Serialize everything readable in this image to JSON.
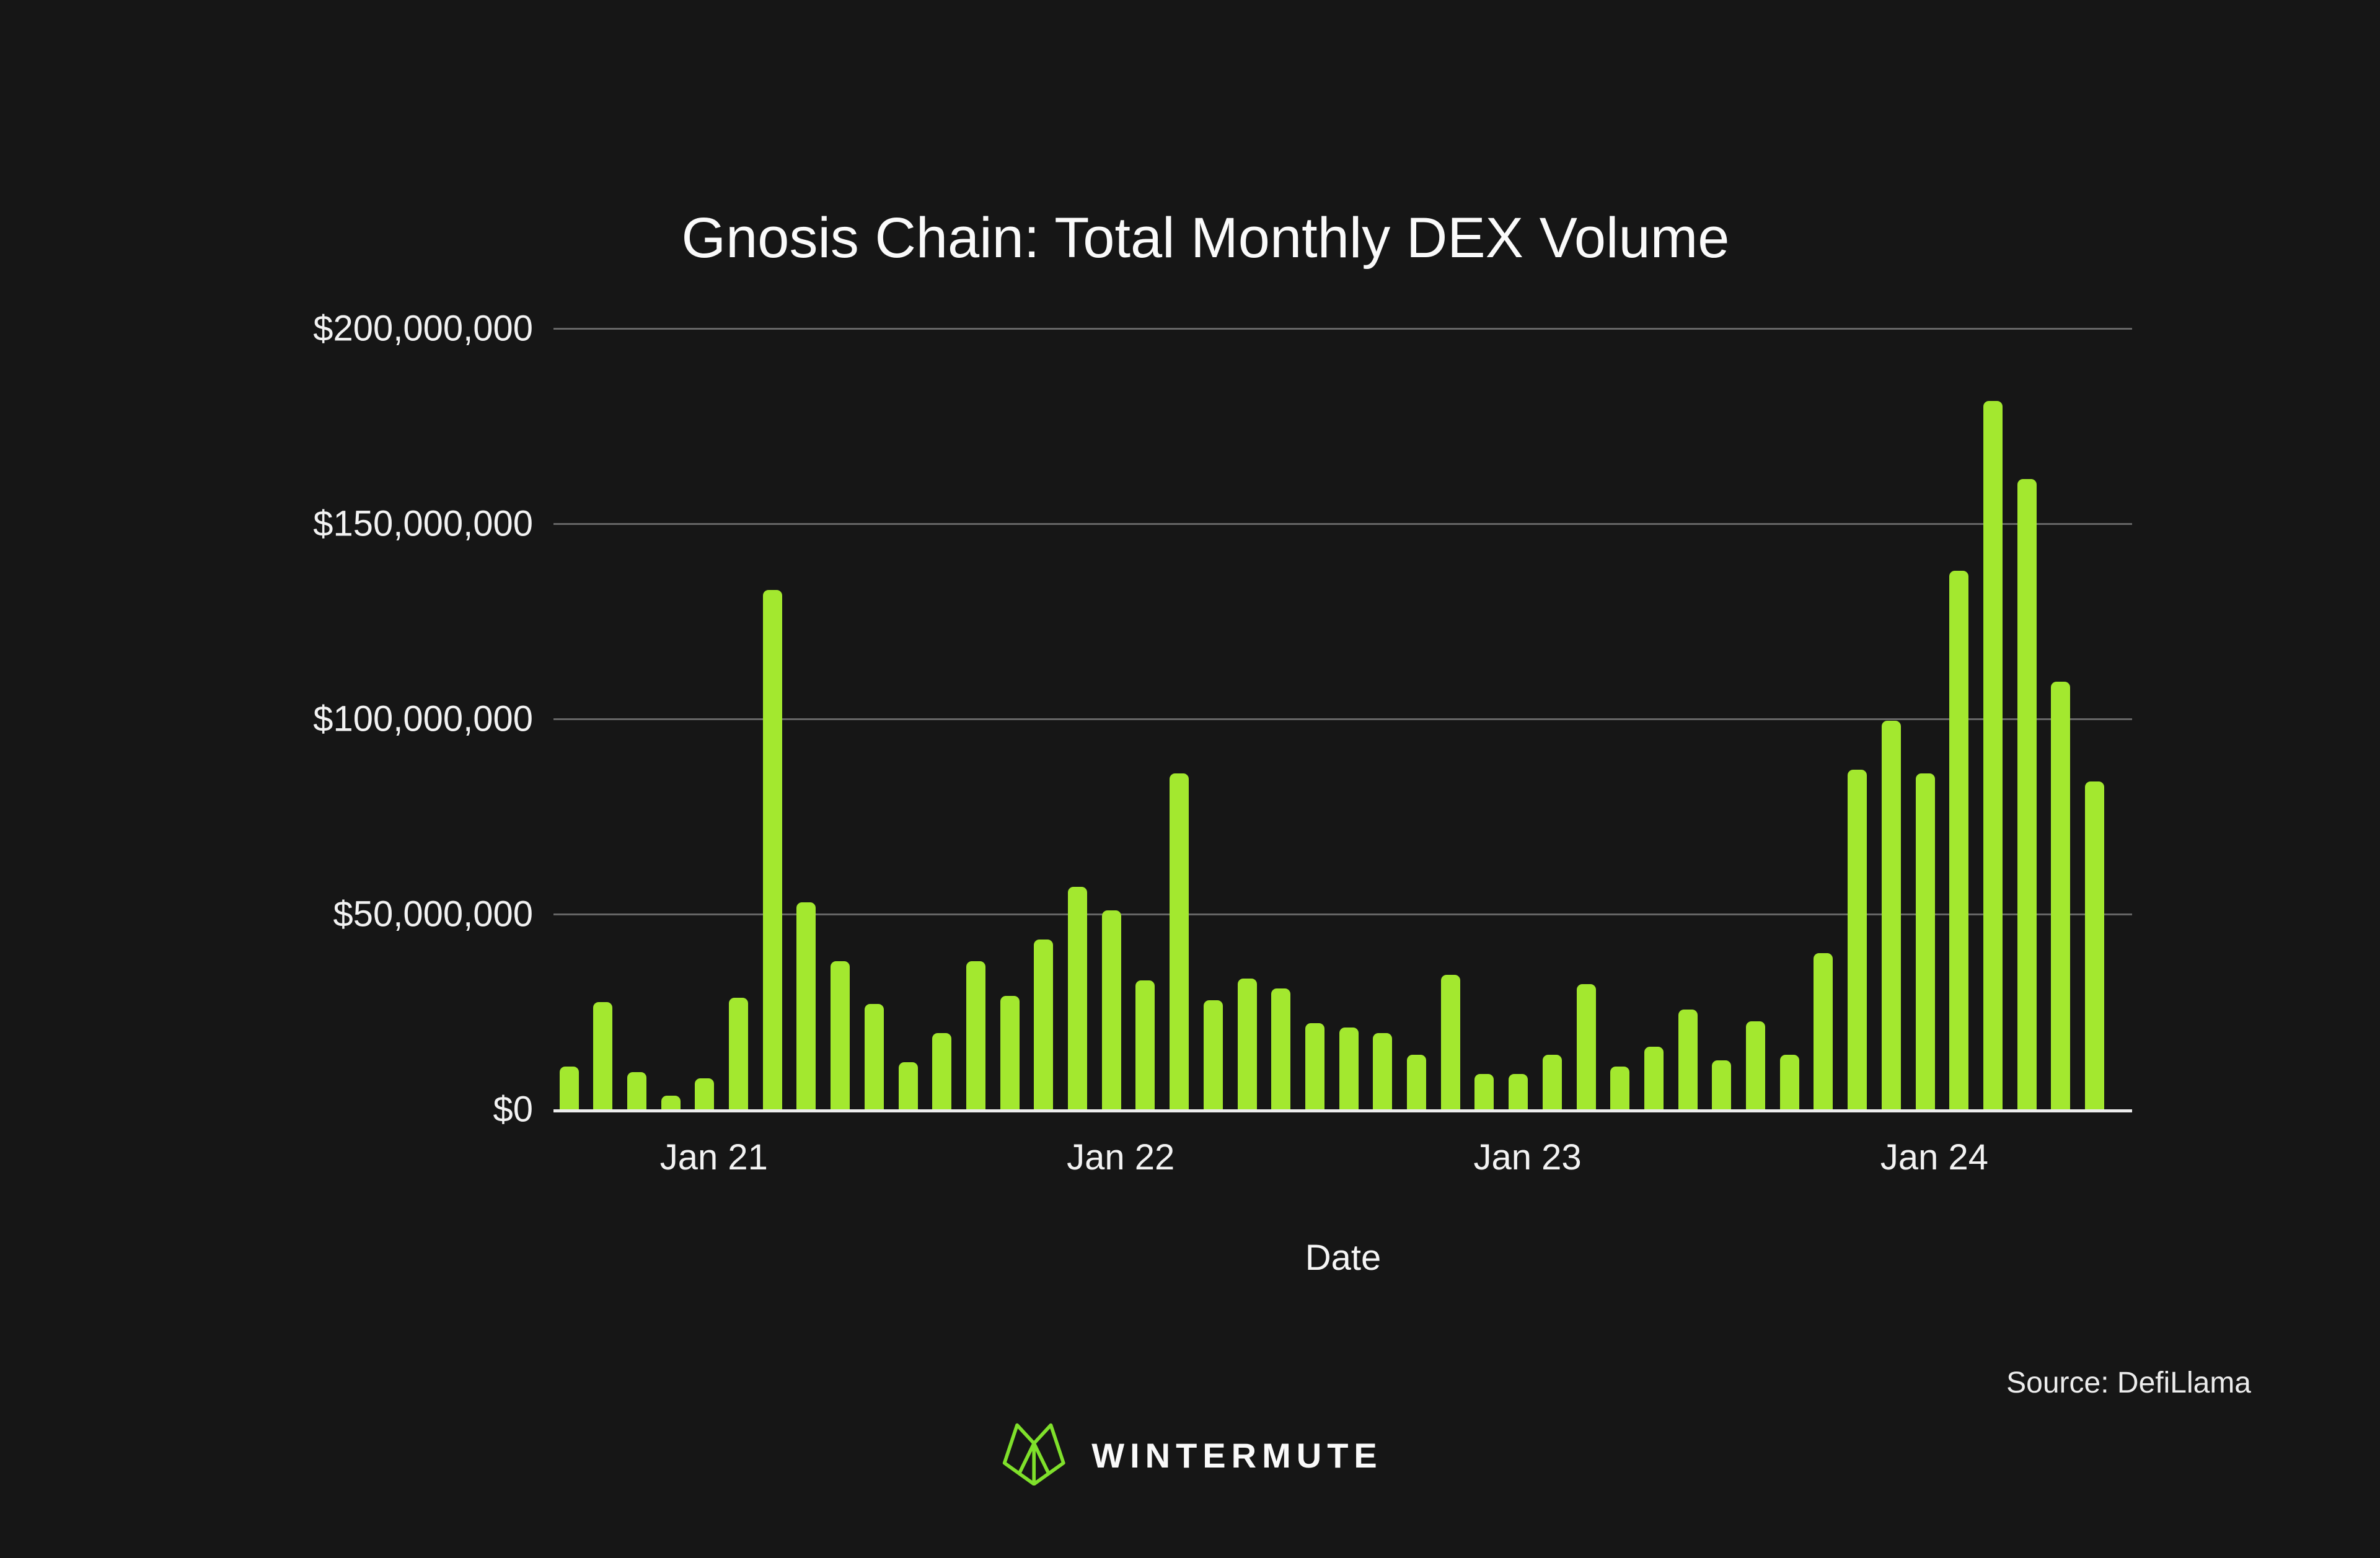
{
  "title": "Gnosis Chain: Total Monthly DEX Volume",
  "x_axis_title": "Date",
  "source_label": "Source: DefiLlama",
  "brand": {
    "wordmark": "WINTERMUTE",
    "icon": "wintermute-fox-icon"
  },
  "colors": {
    "background": "#161616",
    "bar": "#A3E82F",
    "logo_green": "#7FE02B",
    "gridline": "#666666",
    "axis_line": "#ECECEC",
    "text": "#F2F2F2"
  },
  "chart_data": {
    "type": "bar",
    "title": "Gnosis Chain: Total Monthly DEX Volume",
    "xlabel": "Date",
    "ylabel": "",
    "ylim": [
      0,
      200000000
    ],
    "grid": "horizontal",
    "legend": "none",
    "bar_color": "#A3E82F",
    "y_ticks": [
      {
        "value": 0,
        "label": "$0"
      },
      {
        "value": 50000000,
        "label": "$50,000,000"
      },
      {
        "value": 100000000,
        "label": "$100,000,000"
      },
      {
        "value": 150000000,
        "label": "$150,000,000"
      },
      {
        "value": 200000000,
        "label": "$200,000,000"
      }
    ],
    "x_year_ticks": [
      {
        "index": 4,
        "label": "Jan 21"
      },
      {
        "index": 16,
        "label": "Jan 22"
      },
      {
        "index": 28,
        "label": "Jan 23"
      },
      {
        "index": 40,
        "label": "Jan 24"
      }
    ],
    "categories": [
      "Sep 2020",
      "Oct 2020",
      "Nov 2020",
      "Dec 2020",
      "Jan 2021",
      "Feb 2021",
      "Mar 2021",
      "Apr 2021",
      "May 2021",
      "Jun 2021",
      "Jul 2021",
      "Aug 2021",
      "Sep 2021",
      "Oct 2021",
      "Nov 2021",
      "Dec 2021",
      "Jan 2022",
      "Feb 2022",
      "Mar 2022",
      "Apr 2022",
      "May 2022",
      "Jun 2022",
      "Jul 2022",
      "Aug 2022",
      "Sep 2022",
      "Oct 2022",
      "Nov 2022",
      "Dec 2022",
      "Jan 2023",
      "Feb 2023",
      "Mar 2023",
      "Apr 2023",
      "May 2023",
      "Jun 2023",
      "Jul 2023",
      "Aug 2023",
      "Sep 2023",
      "Oct 2023",
      "Nov 2023",
      "Dec 2023",
      "Jan 2024",
      "Feb 2024",
      "Mar 2024",
      "Apr 2024",
      "May 2024",
      "Jun 2024"
    ],
    "values": [
      11000000,
      27500000,
      9500000,
      3500000,
      8000000,
      28500000,
      133000000,
      53000000,
      38000000,
      27000000,
      12000000,
      19500000,
      38000000,
      29000000,
      43500000,
      57000000,
      51000000,
      33000000,
      86000000,
      28000000,
      33500000,
      31000000,
      22000000,
      21000000,
      19500000,
      14000000,
      34500000,
      9000000,
      9000000,
      14000000,
      32000000,
      11000000,
      16000000,
      25500000,
      12500000,
      22500000,
      14000000,
      40000000,
      87000000,
      99500000,
      86000000,
      138000000,
      181500000,
      161500000,
      109500000,
      84000000
    ]
  }
}
